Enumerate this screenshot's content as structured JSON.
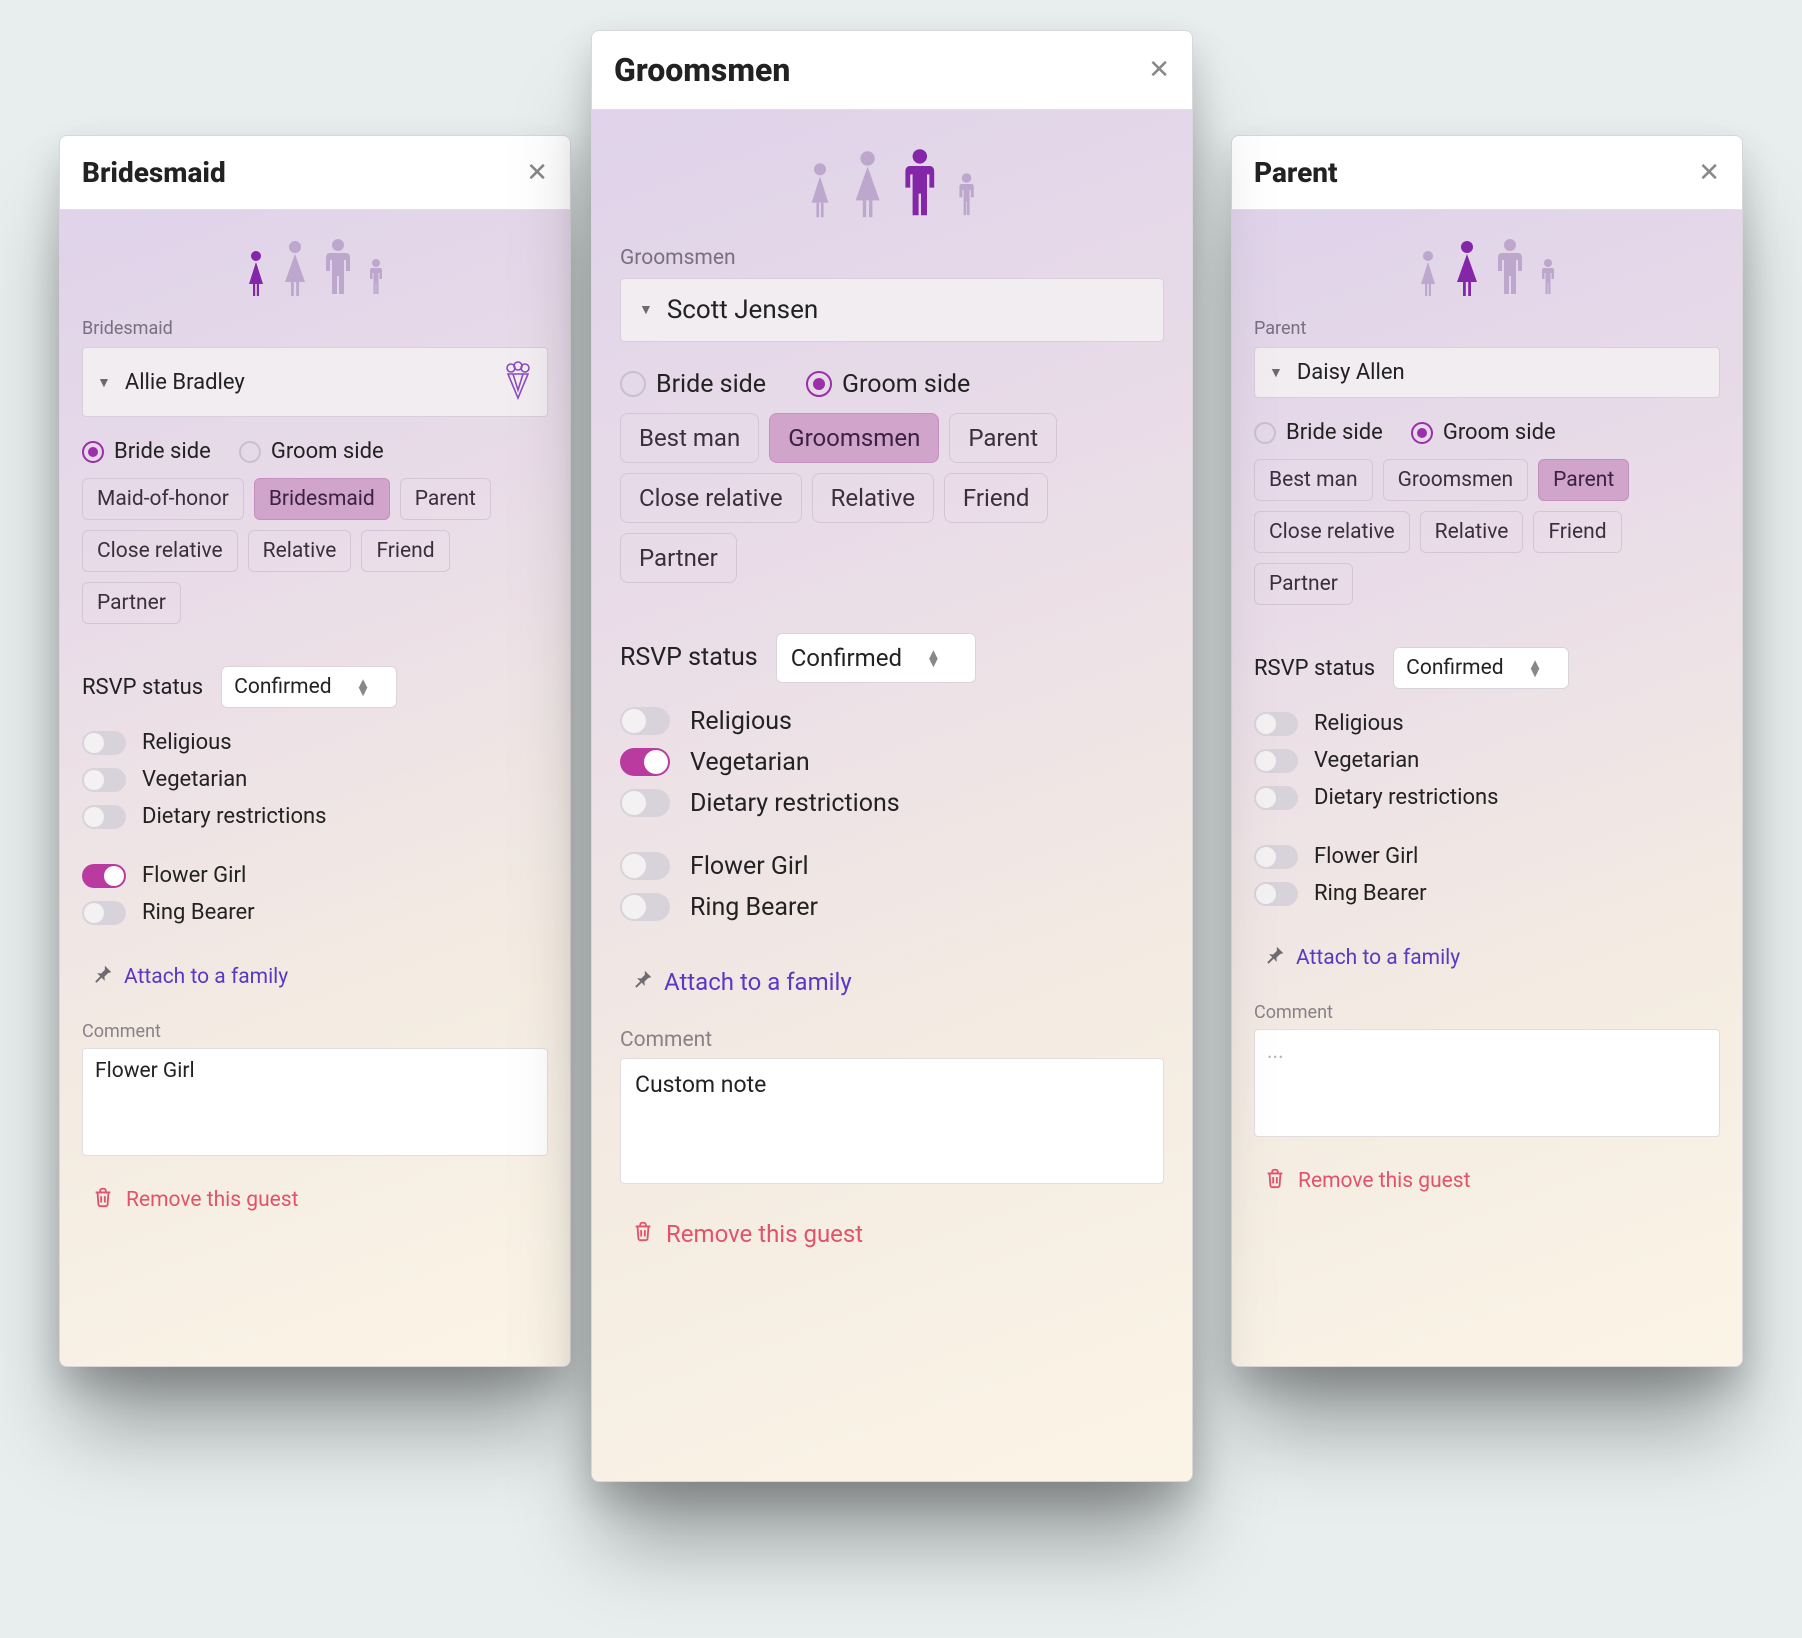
{
  "colors": {
    "accent_purple": "#9a2fa7",
    "chip_selected_bg": "#d0a4cb",
    "chip_selected_border": "#c58fbf",
    "toggle_on": "#b93ba0",
    "link_purple": "#5d37c2",
    "danger": "#e1536a",
    "icon_inactive": "#bda7cc",
    "icon_active": "#8326a7",
    "card_border": "#d9d6dc",
    "gradient_start": "#ded1ea",
    "gradient_end": "#fbf4e6"
  },
  "icons": {
    "woman_small": "woman-icon",
    "woman_big": "woman-icon",
    "man_big": "man-icon",
    "child": "child-icon",
    "bouquet": "bouquet-icon",
    "pin": "pin-icon",
    "trash": "trash-icon",
    "close": "close-icon",
    "caret_down": "caret-down-icon",
    "sort": "sort-icon"
  },
  "sides": {
    "bride_label": "Bride side",
    "groom_label": "Groom side"
  },
  "rsvp": {
    "label": "RSVP status",
    "selected": "Confirmed"
  },
  "toggles": {
    "religious": "Religious",
    "vegetarian": "Vegetarian",
    "dietary": "Dietary restrictions",
    "flower_girl": "Flower Girl",
    "ring_bearer": "Ring Bearer"
  },
  "attach_label": "Attach to a family",
  "comment_label": "Comment",
  "remove_label": "Remove this guest",
  "cards": {
    "left": {
      "title": "Bridesmaid",
      "section_label": "Bridesmaid",
      "person_name": "Allie Bradley",
      "show_bouquet": true,
      "active_person_index": 0,
      "side_selected": "bride",
      "roles": [
        {
          "label": "Maid-of-honor",
          "selected": false
        },
        {
          "label": "Bridesmaid",
          "selected": true
        },
        {
          "label": "Parent",
          "selected": false
        },
        {
          "label": "Close relative",
          "selected": false
        },
        {
          "label": "Relative",
          "selected": false
        },
        {
          "label": "Friend",
          "selected": false
        },
        {
          "label": "Partner",
          "selected": false
        }
      ],
      "toggle_state": {
        "religious": false,
        "vegetarian": false,
        "dietary": false,
        "flower_girl": true,
        "ring_bearer": false
      },
      "comment_value": "Flower Girl",
      "comment_placeholder": false
    },
    "center": {
      "title": "Groomsmen",
      "section_label": "Groomsmen",
      "person_name": "Scott Jensen",
      "show_bouquet": false,
      "active_person_index": 2,
      "side_selected": "groom",
      "roles": [
        {
          "label": "Best man",
          "selected": false
        },
        {
          "label": "Groomsmen",
          "selected": true
        },
        {
          "label": "Parent",
          "selected": false
        },
        {
          "label": "Close relative",
          "selected": false
        },
        {
          "label": "Relative",
          "selected": false
        },
        {
          "label": "Friend",
          "selected": false
        },
        {
          "label": "Partner",
          "selected": false
        }
      ],
      "toggle_state": {
        "religious": false,
        "vegetarian": true,
        "dietary": false,
        "flower_girl": false,
        "ring_bearer": false
      },
      "comment_value": "Custom note",
      "comment_placeholder": false
    },
    "right": {
      "title": "Parent",
      "section_label": "Parent",
      "person_name": "Daisy Allen",
      "show_bouquet": false,
      "active_person_index": 1,
      "side_selected": "groom",
      "roles": [
        {
          "label": "Best man",
          "selected": false
        },
        {
          "label": "Groomsmen",
          "selected": false
        },
        {
          "label": "Parent",
          "selected": true
        },
        {
          "label": "Close relative",
          "selected": false
        },
        {
          "label": "Relative",
          "selected": false
        },
        {
          "label": "Friend",
          "selected": false
        },
        {
          "label": "Partner",
          "selected": false
        }
      ],
      "toggle_state": {
        "religious": false,
        "vegetarian": false,
        "dietary": false,
        "flower_girl": false,
        "ring_bearer": false
      },
      "comment_value": "...",
      "comment_placeholder": true
    }
  }
}
